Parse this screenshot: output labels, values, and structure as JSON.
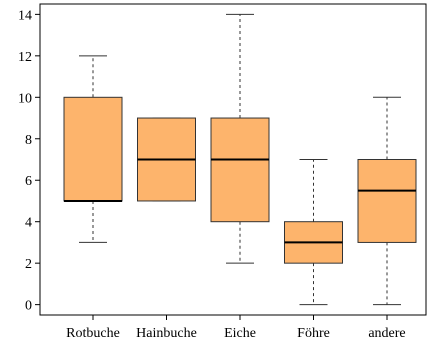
{
  "chart_data": {
    "type": "boxplot",
    "title": "",
    "xlabel": "",
    "ylabel": "",
    "ylim": [
      -0.5,
      14.5
    ],
    "yticks": [
      0,
      2,
      4,
      6,
      8,
      10,
      12,
      14
    ],
    "categories": [
      "Rotbuche",
      "Hainbuche",
      "Eiche",
      "Föhre",
      "andere"
    ],
    "boxes": [
      {
        "min": 3,
        "q1": 5,
        "median": 5,
        "q3": 10,
        "max": 12
      },
      {
        "min": 5,
        "q1": 5,
        "median": 7,
        "q3": 9,
        "max": 9
      },
      {
        "min": 2,
        "q1": 4,
        "median": 7,
        "q3": 9,
        "max": 14
      },
      {
        "min": 0,
        "q1": 2,
        "median": 3,
        "q3": 4,
        "max": 7
      },
      {
        "min": 0,
        "q1": 3,
        "median": 5.5,
        "q3": 7,
        "max": 10
      }
    ],
    "box_color": "#fdb46c",
    "grid": false,
    "legend": "none"
  }
}
